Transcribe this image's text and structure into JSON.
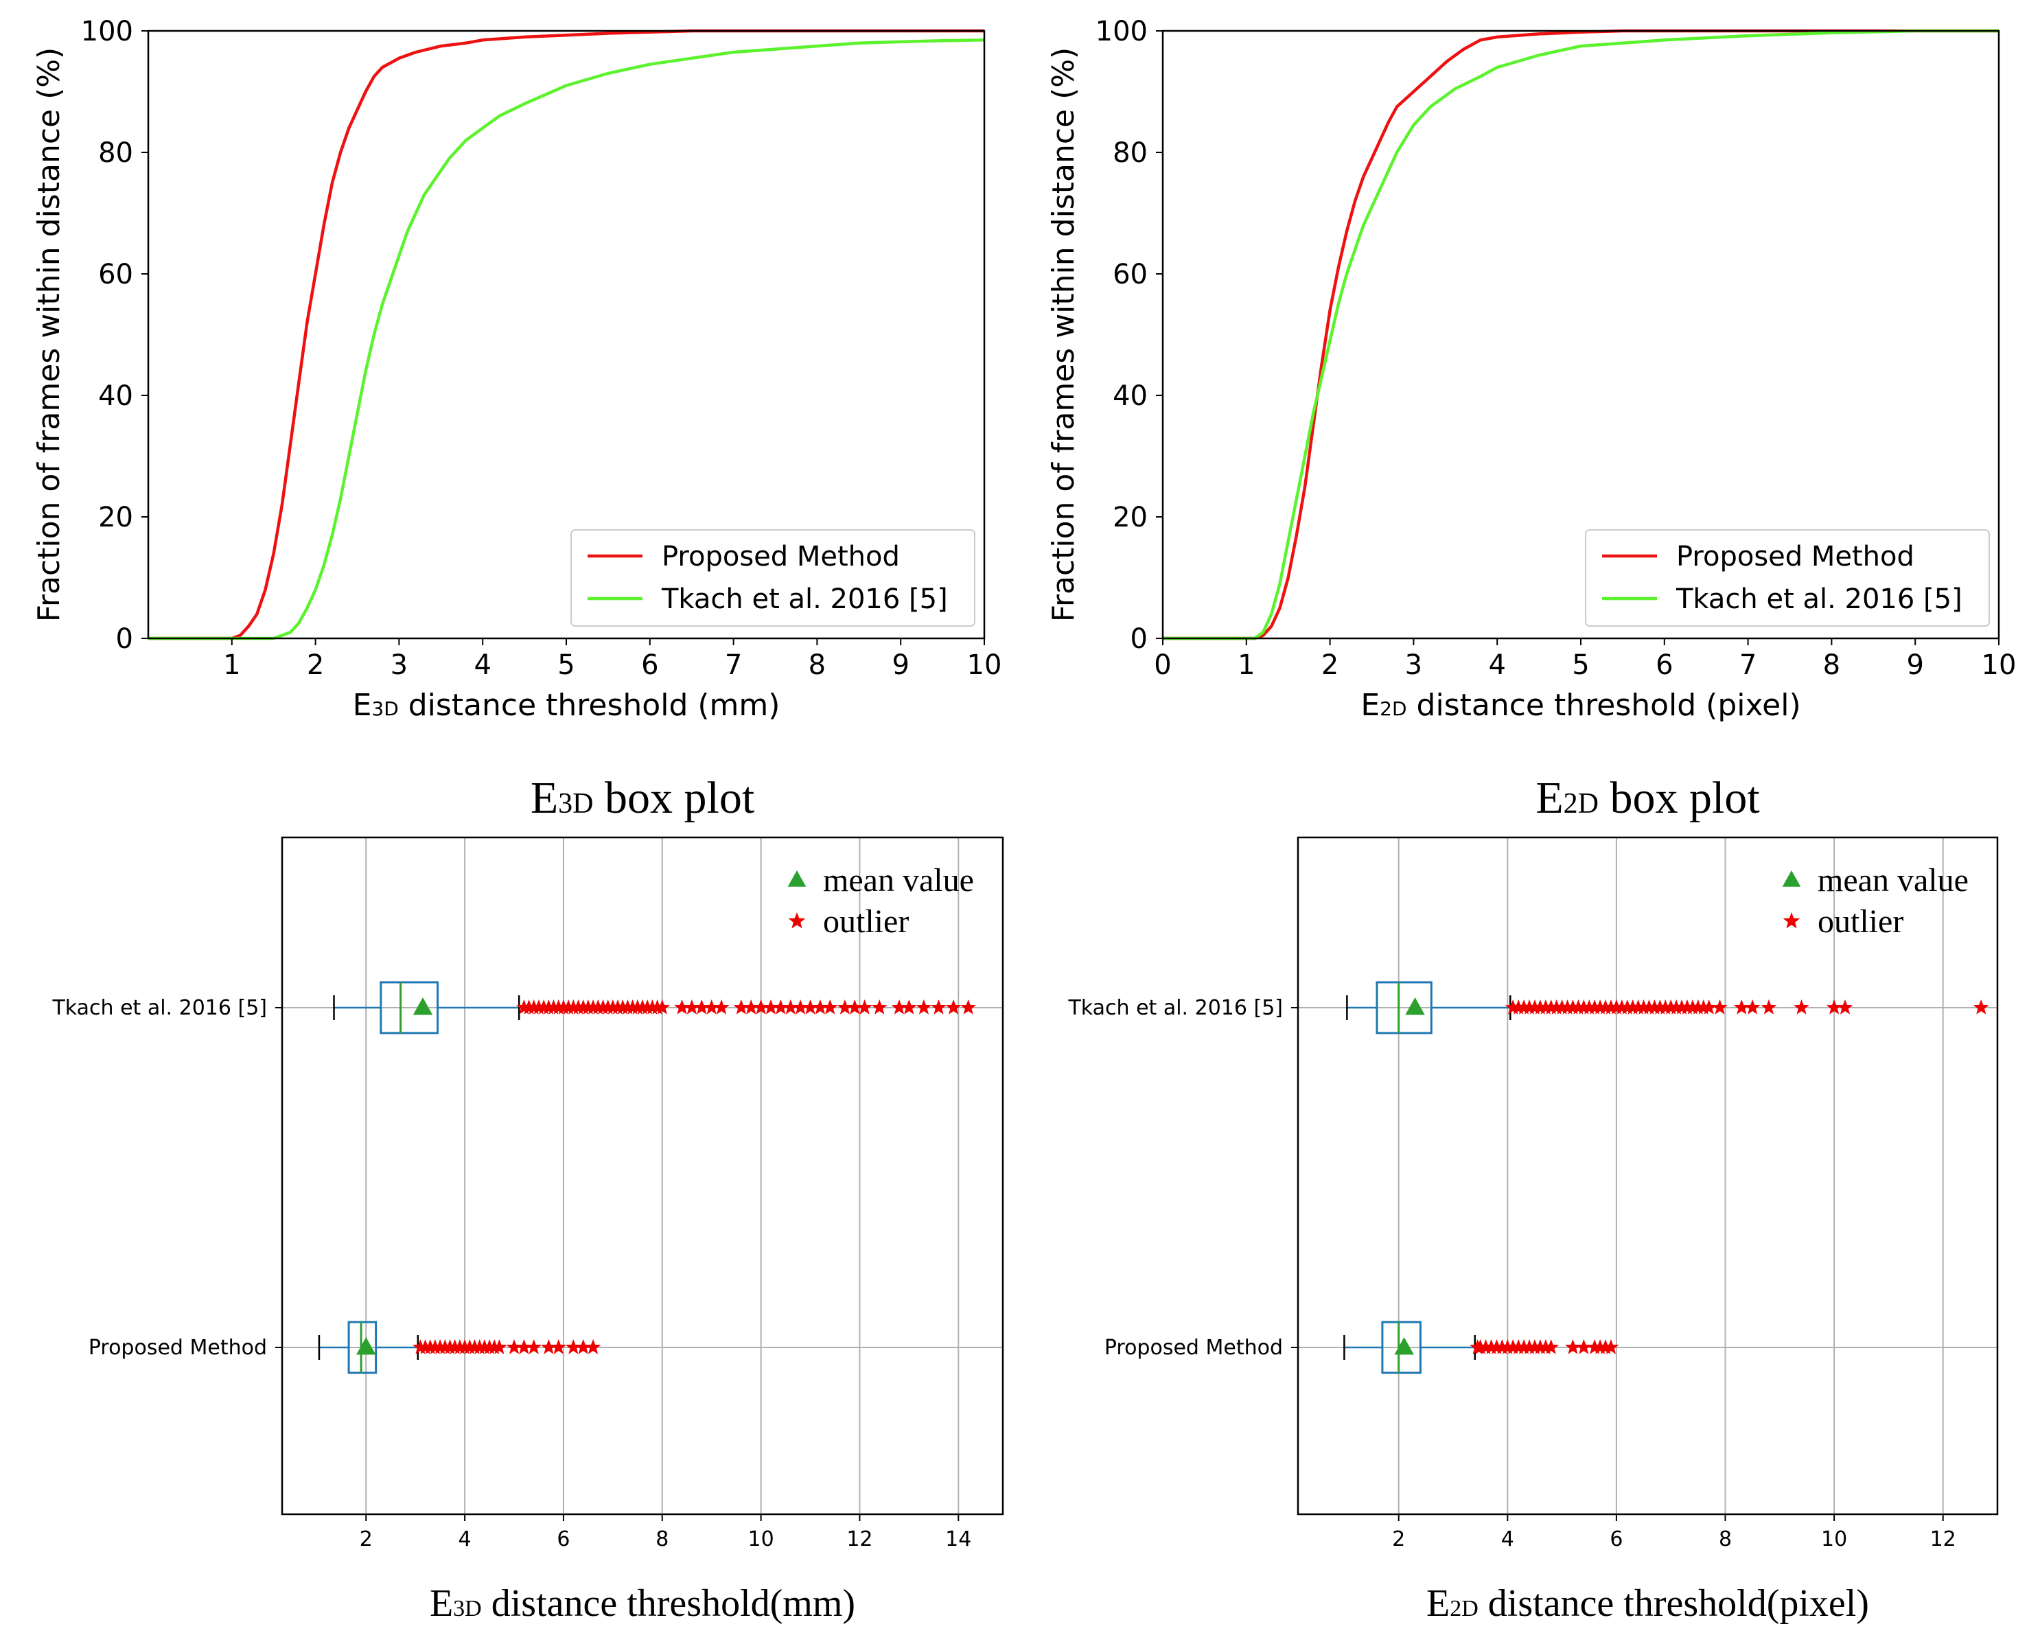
{
  "colors": {
    "proposed": "#ee1111",
    "tkach": "#5cf22e",
    "box": "#1f77b4",
    "mean": "#2ca02c",
    "outlier": "#ee0000",
    "grid": "#b0b0b0"
  },
  "chart_data": [
    {
      "type": "line",
      "id": "cdf3d",
      "title": "",
      "xlabel": {
        "main": "E",
        "sub": "3D",
        "rest": " distance threshold (mm)"
      },
      "ylabel": "Fraction of frames within distance (%)",
      "xlim": [
        0,
        10
      ],
      "ylim": [
        0,
        100
      ],
      "xticks": [
        1,
        2,
        3,
        4,
        5,
        6,
        7,
        8,
        9,
        10
      ],
      "yticks": [
        0,
        20,
        40,
        60,
        80,
        100
      ],
      "legend": "bottom-right",
      "series": [
        {
          "name": "Proposed Method",
          "color": "proposed",
          "points": [
            [
              0,
              0
            ],
            [
              1.0,
              0
            ],
            [
              1.1,
              0.5
            ],
            [
              1.2,
              2
            ],
            [
              1.3,
              4
            ],
            [
              1.4,
              8
            ],
            [
              1.5,
              14
            ],
            [
              1.6,
              22
            ],
            [
              1.7,
              32
            ],
            [
              1.8,
              42
            ],
            [
              1.9,
              52
            ],
            [
              2.0,
              60
            ],
            [
              2.1,
              68
            ],
            [
              2.2,
              75
            ],
            [
              2.3,
              80
            ],
            [
              2.4,
              84
            ],
            [
              2.5,
              87
            ],
            [
              2.6,
              90
            ],
            [
              2.7,
              92.5
            ],
            [
              2.8,
              94
            ],
            [
              3.0,
              95.5
            ],
            [
              3.2,
              96.5
            ],
            [
              3.5,
              97.5
            ],
            [
              3.8,
              98
            ],
            [
              4.0,
              98.5
            ],
            [
              4.5,
              99
            ],
            [
              5.0,
              99.3
            ],
            [
              5.5,
              99.6
            ],
            [
              6.0,
              99.8
            ],
            [
              6.5,
              100
            ],
            [
              10,
              100
            ]
          ]
        },
        {
          "name": "Tkach et al. 2016 [5]",
          "color": "tkach",
          "points": [
            [
              0,
              0
            ],
            [
              1.5,
              0
            ],
            [
              1.6,
              0.5
            ],
            [
              1.7,
              1
            ],
            [
              1.8,
              2.5
            ],
            [
              1.9,
              5
            ],
            [
              2.0,
              8
            ],
            [
              2.1,
              12
            ],
            [
              2.2,
              17
            ],
            [
              2.3,
              23
            ],
            [
              2.4,
              30
            ],
            [
              2.5,
              37
            ],
            [
              2.6,
              44
            ],
            [
              2.7,
              50
            ],
            [
              2.8,
              55
            ],
            [
              2.9,
              59
            ],
            [
              3.0,
              63
            ],
            [
              3.1,
              67
            ],
            [
              3.2,
              70
            ],
            [
              3.3,
              73
            ],
            [
              3.4,
              75
            ],
            [
              3.5,
              77
            ],
            [
              3.6,
              79
            ],
            [
              3.8,
              82
            ],
            [
              4.0,
              84
            ],
            [
              4.2,
              86
            ],
            [
              4.5,
              88
            ],
            [
              5.0,
              91
            ],
            [
              5.5,
              93
            ],
            [
              6.0,
              94.5
            ],
            [
              6.5,
              95.5
            ],
            [
              7.0,
              96.5
            ],
            [
              7.5,
              97
            ],
            [
              8.0,
              97.5
            ],
            [
              8.5,
              98
            ],
            [
              9.0,
              98.2
            ],
            [
              9.5,
              98.4
            ],
            [
              10,
              98.5
            ]
          ]
        }
      ]
    },
    {
      "type": "line",
      "id": "cdf2d",
      "title": "",
      "xlabel": {
        "main": "E",
        "sub": "2D",
        "rest": " distance threshold (pixel)"
      },
      "ylabel": "Fraction of frames within distance (%)",
      "xlim": [
        0,
        10
      ],
      "ylim": [
        0,
        100
      ],
      "xticks": [
        0,
        1,
        2,
        3,
        4,
        5,
        6,
        7,
        8,
        9,
        10
      ],
      "yticks": [
        0,
        20,
        40,
        60,
        80,
        100
      ],
      "legend": "bottom-right",
      "series": [
        {
          "name": "Proposed Method",
          "color": "proposed",
          "points": [
            [
              0,
              0
            ],
            [
              1.1,
              0
            ],
            [
              1.2,
              0.5
            ],
            [
              1.3,
              2
            ],
            [
              1.4,
              5
            ],
            [
              1.5,
              10
            ],
            [
              1.6,
              17
            ],
            [
              1.7,
              25
            ],
            [
              1.8,
              35
            ],
            [
              1.9,
              45
            ],
            [
              2.0,
              54
            ],
            [
              2.1,
              61
            ],
            [
              2.2,
              67
            ],
            [
              2.3,
              72
            ],
            [
              2.4,
              76
            ],
            [
              2.5,
              79
            ],
            [
              2.6,
              82
            ],
            [
              2.7,
              85
            ],
            [
              2.8,
              87.5
            ],
            [
              3.0,
              90
            ],
            [
              3.2,
              92.5
            ],
            [
              3.4,
              95
            ],
            [
              3.6,
              97
            ],
            [
              3.8,
              98.5
            ],
            [
              4.0,
              99
            ],
            [
              4.5,
              99.5
            ],
            [
              5.0,
              99.8
            ],
            [
              5.5,
              100
            ],
            [
              10,
              100
            ]
          ]
        },
        {
          "name": "Tkach et al. 2016 [5]",
          "color": "tkach",
          "points": [
            [
              0,
              0
            ],
            [
              1.1,
              0
            ],
            [
              1.2,
              1
            ],
            [
              1.3,
              4
            ],
            [
              1.4,
              9
            ],
            [
              1.5,
              16
            ],
            [
              1.6,
              23
            ],
            [
              1.7,
              30
            ],
            [
              1.8,
              37
            ],
            [
              1.9,
              43
            ],
            [
              2.0,
              49
            ],
            [
              2.1,
              55
            ],
            [
              2.2,
              60
            ],
            [
              2.3,
              64
            ],
            [
              2.4,
              68
            ],
            [
              2.5,
              71
            ],
            [
              2.6,
              74
            ],
            [
              2.7,
              77
            ],
            [
              2.8,
              80
            ],
            [
              3.0,
              84.5
            ],
            [
              3.2,
              87.5
            ],
            [
              3.5,
              90.5
            ],
            [
              3.8,
              92.5
            ],
            [
              4.0,
              94
            ],
            [
              4.5,
              96
            ],
            [
              5.0,
              97.5
            ],
            [
              5.5,
              98
            ],
            [
              6.0,
              98.5
            ],
            [
              7.0,
              99.2
            ],
            [
              8.0,
              99.7
            ],
            [
              9.0,
              100
            ],
            [
              10,
              100
            ]
          ]
        }
      ]
    },
    {
      "type": "box",
      "id": "box3d",
      "title": {
        "main": "E",
        "sub": "3D",
        "rest": " box plot"
      },
      "xlabel": {
        "main": "E",
        "sub": "3D",
        "rest": " distance threshold(mm)"
      },
      "ylabel": "",
      "xlim": [
        0.3,
        14.9
      ],
      "xticks": [
        2,
        4,
        6,
        8,
        10,
        12,
        14
      ],
      "legend": {
        "position": "top-right",
        "mean": "mean value",
        "outlier": "outlier"
      },
      "categories": [
        "Tkach et al. 2016 [5]",
        "Proposed Method"
      ],
      "boxes": [
        {
          "label": "Tkach et al. 2016 [5]",
          "whisker_low": 1.35,
          "q1": 2.3,
          "median": 2.7,
          "q3": 3.45,
          "whisker_high": 5.1,
          "mean": 3.15,
          "outliers": [
            5.2,
            5.3,
            5.4,
            5.5,
            5.6,
            5.7,
            5.8,
            5.9,
            6.0,
            6.1,
            6.2,
            6.3,
            6.4,
            6.5,
            6.6,
            6.7,
            6.8,
            6.9,
            7.0,
            7.1,
            7.2,
            7.3,
            7.4,
            7.5,
            7.6,
            7.7,
            7.8,
            7.9,
            8.0,
            8.4,
            8.6,
            8.8,
            9.0,
            9.2,
            9.6,
            9.8,
            10.0,
            10.2,
            10.4,
            10.6,
            10.8,
            11.0,
            11.2,
            11.4,
            11.7,
            11.9,
            12.1,
            12.4,
            12.8,
            13.0,
            13.3,
            13.6,
            13.9,
            14.2
          ]
        },
        {
          "label": "Proposed Method",
          "whisker_low": 1.05,
          "q1": 1.65,
          "median": 1.9,
          "q3": 2.2,
          "whisker_high": 3.05,
          "mean": 2.0,
          "outliers": [
            3.1,
            3.2,
            3.3,
            3.4,
            3.5,
            3.6,
            3.7,
            3.8,
            3.9,
            4.0,
            4.1,
            4.2,
            4.3,
            4.4,
            4.5,
            4.6,
            4.7,
            5.0,
            5.2,
            5.4,
            5.7,
            5.9,
            6.2,
            6.4,
            6.6
          ]
        }
      ]
    },
    {
      "type": "box",
      "id": "box2d",
      "title": {
        "main": "E",
        "sub": "2D",
        "rest": " box plot"
      },
      "xlabel": {
        "main": "E",
        "sub": "2D",
        "rest": " distance threshold(pixel)"
      },
      "ylabel": "",
      "xlim": [
        0.15,
        13.0
      ],
      "xticks": [
        2,
        4,
        6,
        8,
        10,
        12
      ],
      "legend": {
        "position": "top-right",
        "mean": "mean value",
        "outlier": "outlier"
      },
      "categories": [
        "Tkach et al. 2016 [5]",
        "Proposed Method"
      ],
      "boxes": [
        {
          "label": "Tkach et al. 2016 [5]",
          "whisker_low": 1.05,
          "q1": 1.6,
          "median": 2.0,
          "q3": 2.6,
          "whisker_high": 4.05,
          "mean": 2.3,
          "outliers": [
            4.1,
            4.2,
            4.3,
            4.4,
            4.5,
            4.6,
            4.7,
            4.8,
            4.9,
            5.0,
            5.1,
            5.2,
            5.3,
            5.4,
            5.5,
            5.6,
            5.7,
            5.8,
            5.9,
            6.0,
            6.1,
            6.2,
            6.3,
            6.4,
            6.5,
            6.6,
            6.7,
            6.8,
            6.9,
            7.0,
            7.1,
            7.2,
            7.3,
            7.4,
            7.5,
            7.6,
            7.7,
            7.9,
            8.3,
            8.5,
            8.8,
            9.4,
            10.0,
            10.2,
            12.7
          ]
        },
        {
          "label": "Proposed Method",
          "whisker_low": 1.0,
          "q1": 1.7,
          "median": 2.0,
          "q3": 2.4,
          "whisker_high": 3.4,
          "mean": 2.1,
          "outliers": [
            3.45,
            3.5,
            3.6,
            3.7,
            3.8,
            3.9,
            4.0,
            4.1,
            4.2,
            4.3,
            4.4,
            4.5,
            4.6,
            4.7,
            4.8,
            5.2,
            5.4,
            5.6,
            5.7,
            5.8,
            5.9
          ]
        }
      ]
    }
  ]
}
